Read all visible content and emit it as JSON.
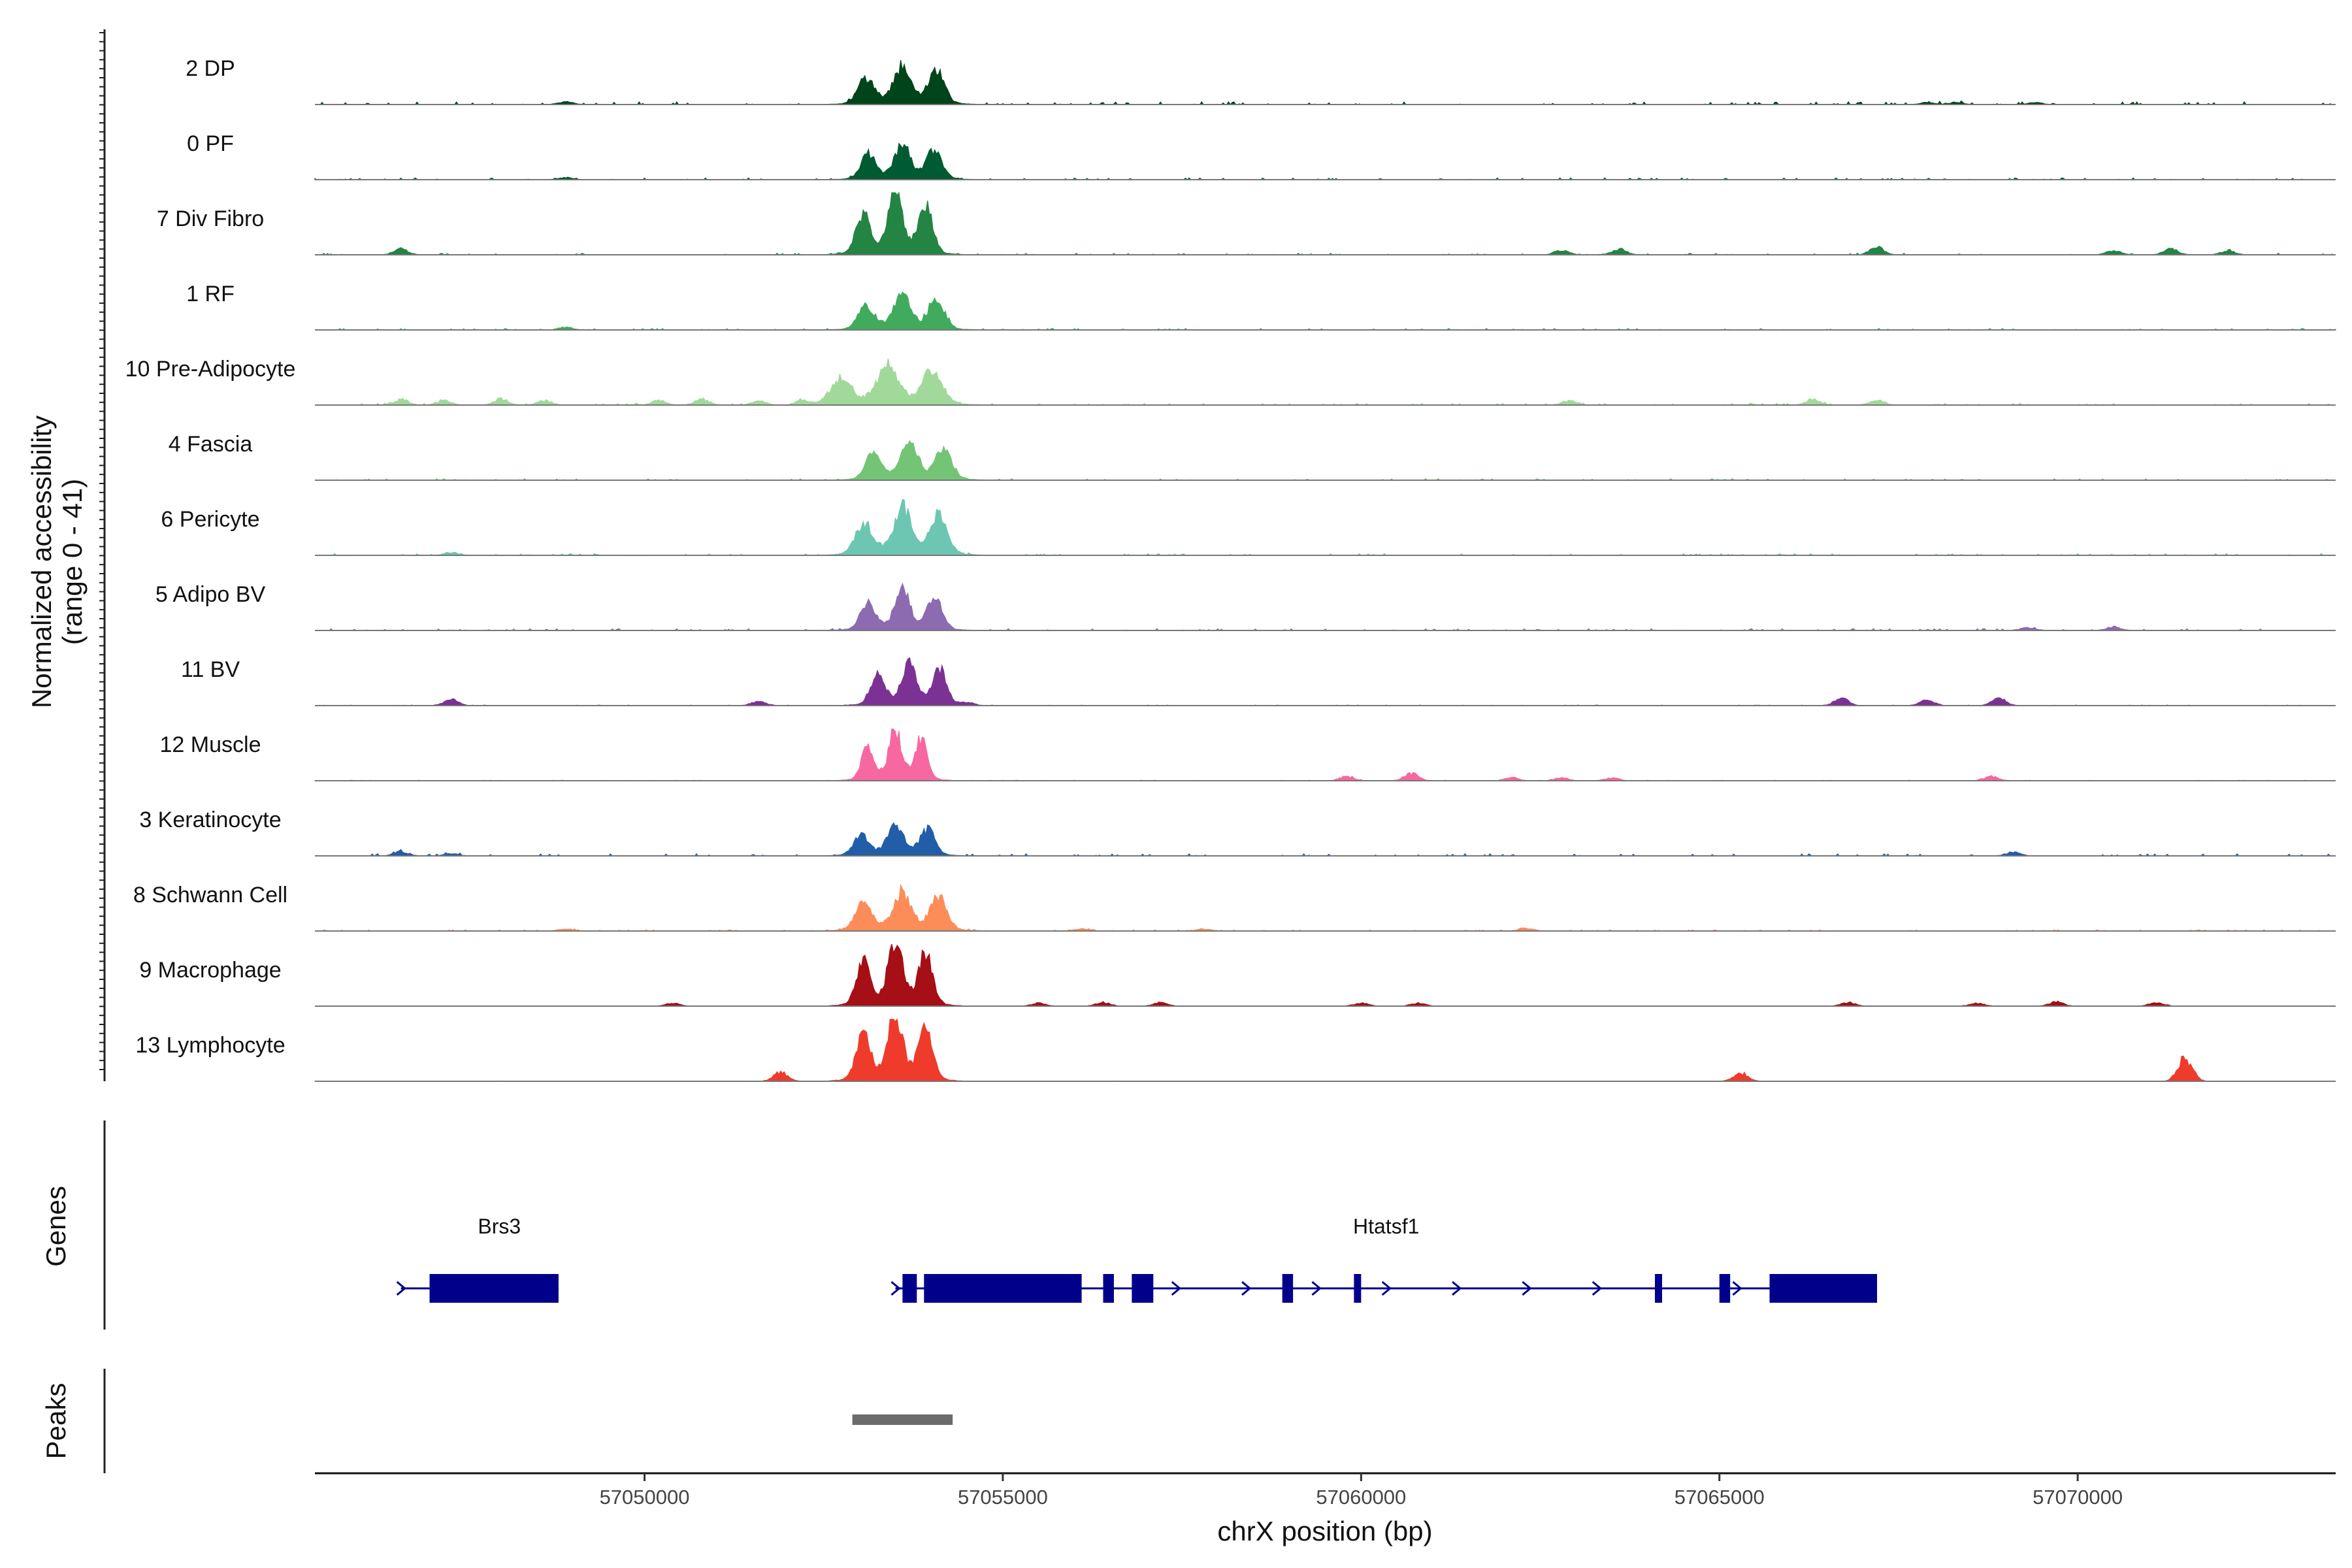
{
  "chart_data": {
    "type": "area",
    "title": "",
    "xlabel": "chrX position (bp)",
    "ylabel": "Normalized accessibility",
    "ylabel_range": "(range 0 - 41)",
    "xlim": [
      57045400,
      57073600
    ],
    "ylim": [
      0,
      41
    ],
    "x_ticks": [
      57050000,
      57055000,
      57060000,
      57065000,
      57070000
    ],
    "x_tick_labels": [
      "57050000",
      "57055000",
      "57060000",
      "57065000",
      "57070000"
    ],
    "tracks": [
      {
        "name": "2 DP",
        "color": "#00441b",
        "main_height": 24,
        "main_center": 57053600,
        "main_width": 1700,
        "extra_peaks": [
          [
            57048900,
            2
          ],
          [
            57067900,
            1.5
          ],
          [
            57068300,
            1.5
          ],
          [
            57069400,
            1.5
          ]
        ],
        "noise": 0.9
      },
      {
        "name": "0 PF",
        "color": "#005a32",
        "main_height": 22,
        "main_center": 57053600,
        "main_width": 1600,
        "extra_peaks": [
          [
            57048900,
            1.5
          ]
        ],
        "noise": 0.6
      },
      {
        "name": "7 Div Fibro",
        "color": "#238443",
        "main_height": 37,
        "main_center": 57053500,
        "main_width": 1500,
        "extra_peaks": [
          [
            57046600,
            4
          ],
          [
            57062800,
            3
          ],
          [
            57063600,
            4
          ],
          [
            57067200,
            5
          ],
          [
            57070500,
            3
          ],
          [
            57071300,
            4
          ],
          [
            57072100,
            3
          ]
        ],
        "noise": 0.5
      },
      {
        "name": "1 RF",
        "color": "#41ab5d",
        "main_height": 22,
        "main_center": 57053600,
        "main_width": 1700,
        "extra_peaks": [
          [
            57048900,
            2
          ]
        ],
        "noise": 0.5
      },
      {
        "name": "10 Pre-Adipocyte",
        "color": "#a1d99b",
        "main_height": 24,
        "main_center": 57053400,
        "main_width": 2200,
        "extra_peaks": [
          [
            57046600,
            4
          ],
          [
            57047200,
            3
          ],
          [
            57048000,
            4
          ],
          [
            57048600,
            3
          ],
          [
            57050200,
            3
          ],
          [
            57050800,
            4
          ],
          [
            57051600,
            3
          ],
          [
            57052200,
            3
          ],
          [
            57062900,
            3
          ],
          [
            57066300,
            4
          ],
          [
            57067200,
            4
          ]
        ],
        "noise": 0.6
      },
      {
        "name": "4 Fascia",
        "color": "#74c476",
        "main_height": 24,
        "main_center": 57053700,
        "main_width": 1700,
        "extra_peaks": [],
        "noise": 0.5
      },
      {
        "name": "6 Pericyte",
        "color": "#6dc6b2",
        "main_height": 29,
        "main_center": 57053600,
        "main_width": 1800,
        "extra_peaks": [
          [
            57047300,
            2
          ]
        ],
        "noise": 0.6
      },
      {
        "name": "5 Adipo BV",
        "color": "#8c6bb1",
        "main_height": 24,
        "main_center": 57053600,
        "main_width": 1600,
        "extra_peaks": [
          [
            57069300,
            2
          ],
          [
            57070500,
            2.5
          ]
        ],
        "noise": 0.6
      },
      {
        "name": "11 BV",
        "color": "#7b3294",
        "main_height": 27,
        "main_center": 57053700,
        "main_width": 1500,
        "extra_peaks": [
          [
            57047300,
            4
          ],
          [
            57051600,
            3
          ],
          [
            57054500,
            2
          ],
          [
            57066700,
            5
          ],
          [
            57067900,
            4
          ],
          [
            57068900,
            5
          ]
        ],
        "noise": 0.2
      },
      {
        "name": "12 Muscle",
        "color": "#f768a1",
        "main_height": 31,
        "main_center": 57053500,
        "main_width": 1300,
        "extra_peaks": [
          [
            57059800,
            3
          ],
          [
            57060700,
            5
          ],
          [
            57062100,
            2
          ],
          [
            57062800,
            2
          ],
          [
            57063500,
            2
          ],
          [
            57068800,
            3
          ]
        ],
        "noise": 0.2
      },
      {
        "name": "3 Keratinocyte",
        "color": "#225ea8",
        "main_height": 19,
        "main_center": 57053500,
        "main_width": 1600,
        "extra_peaks": [
          [
            57046600,
            3
          ],
          [
            57047300,
            1.5
          ],
          [
            57069100,
            2.5
          ]
        ],
        "noise": 0.7
      },
      {
        "name": "8 Schwann Cell",
        "color": "#fc8d59",
        "main_height": 24,
        "main_center": 57053600,
        "main_width": 1800,
        "extra_peaks": [
          [
            57048900,
            1.5
          ],
          [
            57056100,
            1.5
          ],
          [
            57057800,
            1.5
          ],
          [
            57062300,
            2
          ]
        ],
        "noise": 0.4
      },
      {
        "name": "9 Macrophage",
        "color": "#a50f15",
        "main_height": 39,
        "main_center": 57053500,
        "main_width": 1500,
        "extra_peaks": [
          [
            57050400,
            2
          ],
          [
            57055500,
            2
          ],
          [
            57056400,
            2.5
          ],
          [
            57057200,
            2.5
          ],
          [
            57060000,
            2
          ],
          [
            57060800,
            2
          ],
          [
            57066800,
            2.5
          ],
          [
            57068600,
            2
          ],
          [
            57069700,
            3
          ],
          [
            57071100,
            2.5
          ]
        ],
        "noise": 0.1
      },
      {
        "name": "13 Lymphocyte",
        "color": "#ef3b2c",
        "main_height": 41,
        "main_center": 57053500,
        "main_width": 1500,
        "extra_peaks": [
          [
            57051900,
            6
          ],
          [
            57065300,
            6
          ],
          [
            57071500,
            16
          ]
        ],
        "noise": 0.1
      }
    ],
    "genes_panel_label": "Genes",
    "genes": [
      {
        "name": "Brs3",
        "strand": "+",
        "start": 57046600,
        "end": 57048800,
        "exons": [
          [
            57047000,
            57048800
          ]
        ]
      },
      {
        "name": "Htatsf1",
        "strand": "+",
        "start": 57053500,
        "end": 57067200,
        "exons": [
          [
            57053600,
            57053800
          ],
          [
            57053900,
            57056100
          ],
          [
            57056400,
            57056550
          ],
          [
            57056800,
            57057100
          ],
          [
            57058900,
            57059050
          ],
          [
            57059900,
            57060000
          ],
          [
            57064100,
            57064200
          ],
          [
            57065000,
            57065150
          ],
          [
            57065700,
            57067200
          ]
        ]
      }
    ],
    "peaks_panel_label": "Peaks",
    "peaks": [
      {
        "start": 57052900,
        "end": 57054300
      }
    ]
  }
}
